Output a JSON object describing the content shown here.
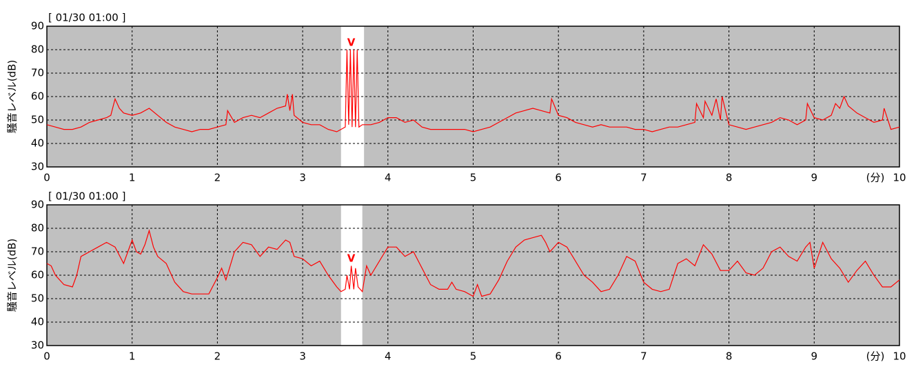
{
  "chart_data": [
    {
      "type": "line",
      "title": "[ 01/30 01:00 ]",
      "ylabel": "騒音レベル(dB)",
      "xlabel": "(分)",
      "xlim": [
        0,
        10
      ],
      "ylim": [
        30,
        90
      ],
      "xticks": [
        0,
        1,
        2,
        3,
        4,
        5,
        6,
        7,
        8,
        9,
        10
      ],
      "yticks": [
        30,
        40,
        50,
        60,
        70,
        80,
        90
      ],
      "grid": true,
      "background": "#c0c0c0",
      "highlight_range": [
        3.45,
        3.72
      ],
      "annotation": {
        "text": "V",
        "x": 3.57,
        "y": 83
      },
      "x": [
        0,
        0.1,
        0.2,
        0.3,
        0.4,
        0.5,
        0.6,
        0.7,
        0.75,
        0.8,
        0.85,
        0.9,
        1.0,
        1.1,
        1.2,
        1.3,
        1.4,
        1.5,
        1.6,
        1.7,
        1.8,
        1.9,
        2.0,
        2.1,
        2.12,
        2.2,
        2.3,
        2.4,
        2.5,
        2.6,
        2.7,
        2.8,
        2.82,
        2.85,
        2.88,
        2.9,
        3.0,
        3.1,
        3.2,
        3.3,
        3.4,
        3.45,
        3.5,
        3.52,
        3.54,
        3.56,
        3.58,
        3.6,
        3.62,
        3.64,
        3.66,
        3.7,
        3.8,
        3.9,
        4.0,
        4.1,
        4.2,
        4.3,
        4.4,
        4.5,
        4.6,
        4.7,
        4.8,
        4.9,
        5.0,
        5.1,
        5.2,
        5.3,
        5.4,
        5.5,
        5.6,
        5.7,
        5.8,
        5.9,
        5.92,
        6.0,
        6.1,
        6.2,
        6.3,
        6.4,
        6.5,
        6.6,
        6.7,
        6.8,
        6.9,
        7.0,
        7.1,
        7.2,
        7.3,
        7.4,
        7.5,
        7.6,
        7.62,
        7.7,
        7.72,
        7.8,
        7.85,
        7.9,
        7.92,
        8.0,
        8.1,
        8.2,
        8.3,
        8.4,
        8.5,
        8.6,
        8.7,
        8.8,
        8.9,
        8.92,
        9.0,
        9.1,
        9.2,
        9.25,
        9.3,
        9.35,
        9.4,
        9.5,
        9.6,
        9.7,
        9.8,
        9.82,
        9.9,
        10
      ],
      "series": [
        {
          "name": "騒音レベル",
          "color": "#ff0000",
          "values": [
            48,
            47,
            46,
            46,
            47,
            49,
            50,
            51,
            52,
            59,
            55,
            53,
            52,
            53,
            55,
            52,
            49,
            47,
            46,
            45,
            46,
            46,
            47,
            48,
            54,
            49,
            51,
            52,
            51,
            53,
            55,
            56,
            61,
            54,
            61,
            52,
            49,
            48,
            48,
            46,
            45,
            46,
            47,
            80,
            48,
            80,
            47,
            80,
            47,
            80,
            47,
            48,
            48,
            49,
            51,
            51,
            49,
            50,
            47,
            46,
            46,
            46,
            46,
            46,
            45,
            46,
            47,
            49,
            51,
            53,
            54,
            55,
            54,
            53,
            59,
            52,
            51,
            49,
            48,
            47,
            48,
            47,
            47,
            47,
            46,
            46,
            45,
            46,
            47,
            47,
            48,
            49,
            57,
            51,
            58,
            52,
            59,
            50,
            60,
            48,
            47,
            46,
            47,
            48,
            49,
            51,
            50,
            48,
            50,
            57,
            51,
            50,
            52,
            57,
            55,
            60,
            56,
            53,
            51,
            49,
            50,
            55,
            46,
            47
          ]
        }
      ]
    },
    {
      "type": "line",
      "title": "[ 01/30 01:00 ]",
      "ylabel": "騒音レベル(dB)",
      "xlabel": "(分)",
      "xlim": [
        0,
        10
      ],
      "ylim": [
        30,
        90
      ],
      "xticks": [
        0,
        1,
        2,
        3,
        4,
        5,
        6,
        7,
        8,
        9,
        10
      ],
      "yticks": [
        30,
        40,
        50,
        60,
        70,
        80,
        90
      ],
      "grid": true,
      "background": "#c0c0c0",
      "highlight_range": [
        3.45,
        3.7
      ],
      "annotation": {
        "text": "V",
        "x": 3.57,
        "y": 67
      },
      "x": [
        0,
        0.05,
        0.1,
        0.2,
        0.3,
        0.35,
        0.4,
        0.5,
        0.6,
        0.7,
        0.8,
        0.9,
        0.95,
        1.0,
        1.05,
        1.1,
        1.15,
        1.2,
        1.25,
        1.3,
        1.4,
        1.5,
        1.6,
        1.7,
        1.8,
        1.9,
        2.0,
        2.05,
        2.1,
        2.2,
        2.3,
        2.4,
        2.5,
        2.6,
        2.7,
        2.8,
        2.85,
        2.9,
        3.0,
        3.1,
        3.2,
        3.3,
        3.4,
        3.45,
        3.5,
        3.52,
        3.55,
        3.57,
        3.6,
        3.62,
        3.65,
        3.7,
        3.75,
        3.8,
        3.9,
        4.0,
        4.1,
        4.2,
        4.3,
        4.4,
        4.5,
        4.6,
        4.7,
        4.75,
        4.8,
        4.9,
        5.0,
        5.05,
        5.1,
        5.2,
        5.3,
        5.4,
        5.5,
        5.6,
        5.7,
        5.8,
        5.85,
        5.9,
        6.0,
        6.1,
        6.2,
        6.3,
        6.4,
        6.5,
        6.6,
        6.7,
        6.8,
        6.9,
        7.0,
        7.1,
        7.2,
        7.3,
        7.4,
        7.5,
        7.6,
        7.7,
        7.8,
        7.9,
        8.0,
        8.1,
        8.2,
        8.3,
        8.4,
        8.5,
        8.6,
        8.7,
        8.8,
        8.9,
        8.95,
        9.0,
        9.1,
        9.2,
        9.3,
        9.4,
        9.5,
        9.6,
        9.7,
        9.8,
        9.9,
        10
      ],
      "series": [
        {
          "name": "騒音レベル",
          "color": "#ff0000",
          "values": [
            65,
            64,
            60,
            56,
            55,
            60,
            68,
            70,
            72,
            74,
            72,
            65,
            70,
            75,
            70,
            69,
            73,
            79,
            72,
            68,
            65,
            57,
            53,
            52,
            52,
            52,
            59,
            63,
            58,
            70,
            74,
            73,
            68,
            72,
            71,
            75,
            74,
            68,
            67,
            64,
            66,
            60,
            55,
            53,
            54,
            60,
            54,
            64,
            54,
            63,
            55,
            53,
            64,
            60,
            66,
            72,
            72,
            68,
            70,
            63,
            56,
            54,
            54,
            57,
            54,
            53,
            51,
            56,
            51,
            52,
            58,
            66,
            72,
            75,
            76,
            77,
            74,
            70,
            74,
            72,
            66,
            60,
            57,
            53,
            54,
            60,
            68,
            66,
            57,
            54,
            53,
            54,
            65,
            67,
            64,
            73,
            69,
            62,
            62,
            66,
            61,
            60,
            63,
            70,
            72,
            68,
            66,
            72,
            74,
            63,
            74,
            67,
            63,
            57,
            62,
            66,
            60,
            55,
            55,
            58
          ]
        }
      ]
    }
  ]
}
